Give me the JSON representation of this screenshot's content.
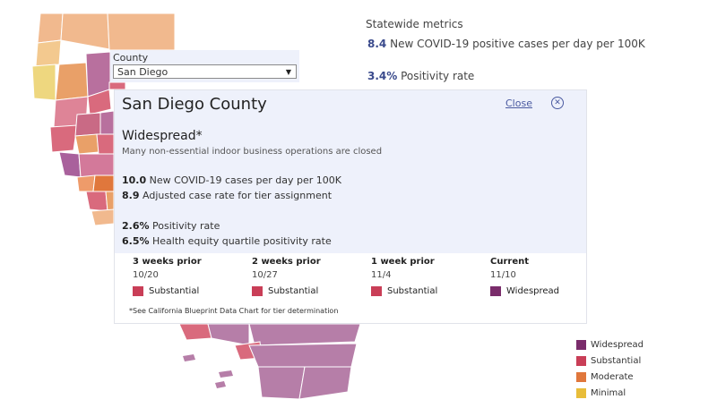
{
  "statewide": {
    "title": "Statewide metrics",
    "cases_value": "8.4",
    "cases_label": "New COVID-19 positive cases per day per 100K",
    "positivity_value": "3.4%",
    "positivity_label": "Positivity rate"
  },
  "county_select": {
    "label": "County",
    "selected": "San Diego"
  },
  "popup": {
    "county_name": "San Diego County",
    "close_label": "Close",
    "tier": "Widespread*",
    "tier_note": "Many non-essential indoor business operations are closed",
    "stats": [
      {
        "value": "10.0",
        "label": "New COVID-19 cases per day per 100K"
      },
      {
        "value": "8.9",
        "label": "Adjusted case rate for tier assignment"
      },
      {
        "value": "2.6%",
        "label": "Positivity rate"
      },
      {
        "value": "6.5%",
        "label": "Health equity quartile positivity rate"
      }
    ],
    "history": [
      {
        "heading": "3 weeks prior",
        "date": "10/20",
        "tier": "Substantial",
        "color": "#c93e57"
      },
      {
        "heading": "2 weeks prior",
        "date": "10/27",
        "tier": "Substantial",
        "color": "#c93e57"
      },
      {
        "heading": "1 week prior",
        "date": "11/4",
        "tier": "Substantial",
        "color": "#c93e57"
      },
      {
        "heading": "Current",
        "date": "11/10",
        "tier": "Widespread",
        "color": "#7a2c6b"
      }
    ],
    "footnote": "*See California Blueprint Data Chart for tier determination"
  },
  "legend": [
    {
      "label": "Widespread",
      "color": "#7a2c6b"
    },
    {
      "label": "Substantial",
      "color": "#c93e57"
    },
    {
      "label": "Moderate",
      "color": "#e0773c"
    },
    {
      "label": "Minimal",
      "color": "#e8bd3a"
    }
  ],
  "icons": {
    "close": "close-circle-icon",
    "dropdown": "caret-down-icon"
  }
}
